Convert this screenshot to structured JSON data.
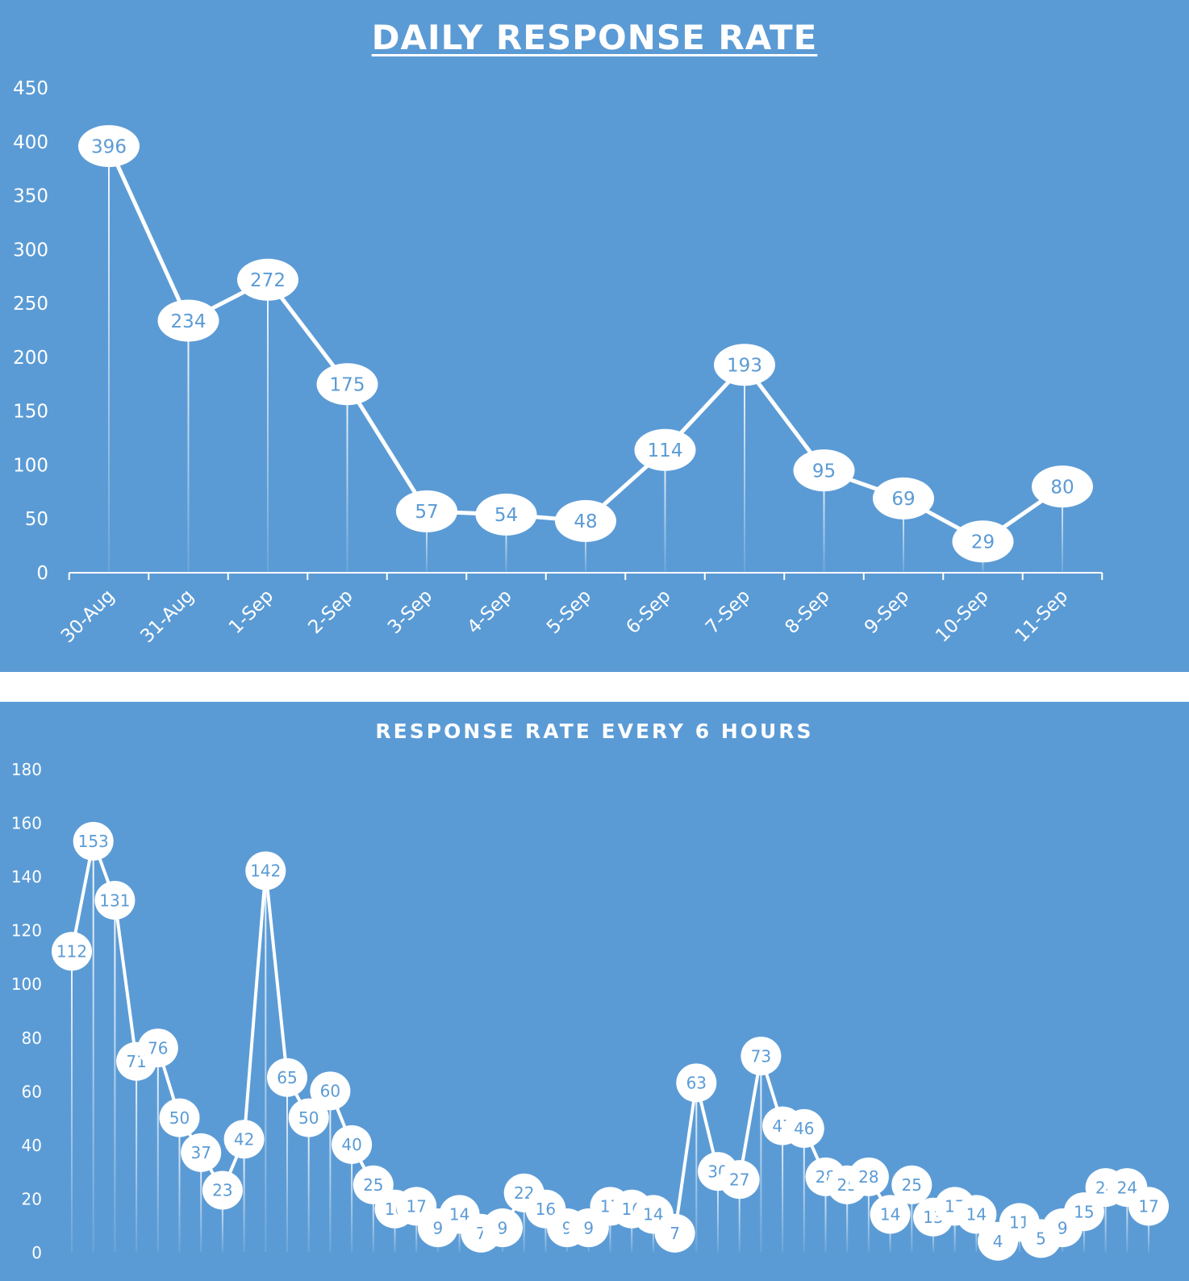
{
  "colors": {
    "background": "#5b9bd5",
    "line": "#ffffff",
    "label_bubble": "#ffffff",
    "label_text": "#5b9bd5",
    "axis_text": "#ffffff"
  },
  "chart_data": [
    {
      "type": "line",
      "title": "DAILY RESPONSE RATE",
      "categories": [
        "30-Aug",
        "31-Aug",
        "1-Sep",
        "2-Sep",
        "3-Sep",
        "4-Sep",
        "5-Sep",
        "6-Sep",
        "7-Sep",
        "8-Sep",
        "9-Sep",
        "10-Sep",
        "11-Sep"
      ],
      "values": [
        396,
        234,
        272,
        175,
        57,
        54,
        48,
        114,
        193,
        95,
        69,
        29,
        80
      ],
      "ylim": [
        0,
        450
      ],
      "yticks": [
        0,
        50,
        100,
        150,
        200,
        250,
        300,
        350,
        400,
        450
      ],
      "grid": false,
      "data_labels": true,
      "drop_lines": true,
      "legend": "none"
    },
    {
      "type": "line",
      "title": "RESPONSE RATE EVERY 6 HOURS",
      "values": [
        112,
        153,
        131,
        71,
        76,
        50,
        37,
        23,
        42,
        142,
        65,
        50,
        60,
        40,
        25,
        16,
        17,
        9,
        14,
        7,
        9,
        22,
        16,
        9,
        9,
        17,
        16,
        14,
        7,
        63,
        30,
        27,
        73,
        47,
        46,
        28,
        25,
        28,
        14,
        25,
        13,
        17,
        14,
        4,
        11,
        5,
        9,
        15,
        24,
        24,
        17
      ],
      "ylim": [
        0,
        180
      ],
      "yticks": [
        0,
        20,
        40,
        60,
        80,
        100,
        120,
        140,
        160,
        180
      ],
      "grid": false,
      "data_labels": true,
      "drop_lines": true,
      "legend": "none"
    }
  ]
}
